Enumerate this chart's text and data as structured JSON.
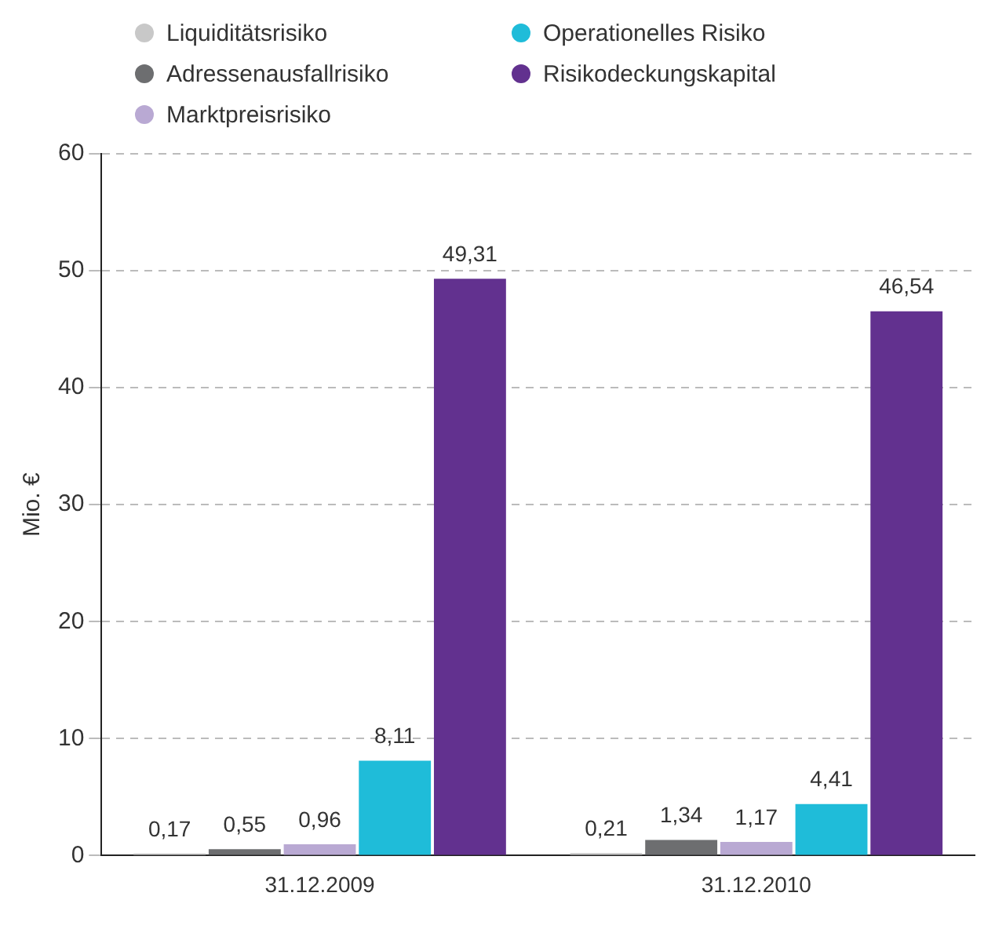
{
  "chart_data": {
    "type": "bar",
    "categories": [
      "31.12.2009",
      "31.12.2010"
    ],
    "ylabel": "Mio. €",
    "ylim": [
      0,
      60
    ],
    "yticks": [
      0,
      10,
      20,
      30,
      40,
      50,
      60
    ],
    "grid": "y",
    "legend": "top",
    "series": [
      {
        "name": "Liquiditätsrisiko",
        "color": "#c8c8c8",
        "values": [
          0.17,
          0.21
        ],
        "value_labels": [
          "0,17",
          "0,21"
        ]
      },
      {
        "name": "Adressenausfallrisiko",
        "color": "#6d6e70",
        "values": [
          0.55,
          1.34
        ],
        "value_labels": [
          "0,55",
          "1,34"
        ]
      },
      {
        "name": "Marktpreisrisiko",
        "color": "#b9a9d3",
        "values": [
          0.96,
          1.17
        ],
        "value_labels": [
          "0,96",
          "1,17"
        ]
      },
      {
        "name": "Operationelles Risiko",
        "color": "#1fbcd9",
        "values": [
          8.11,
          4.41
        ],
        "value_labels": [
          "8,11",
          "4,41"
        ]
      },
      {
        "name": "Risikodeckungskapital",
        "color": "#62318f",
        "values": [
          49.31,
          46.54
        ],
        "value_labels": [
          "49,31",
          "46,54"
        ]
      }
    ]
  }
}
